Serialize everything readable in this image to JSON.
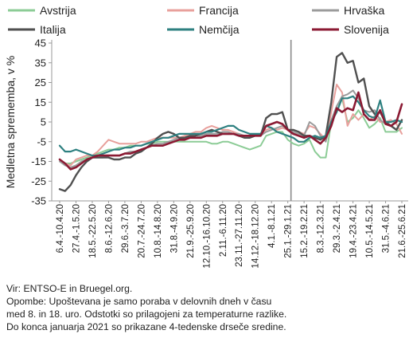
{
  "chart_data": {
    "type": "line",
    "ylabel": "Medletna sprememba, v %",
    "ylim": [
      -35,
      45
    ],
    "yticks": [
      -35,
      -25,
      -15,
      -5,
      5,
      15,
      25,
      35,
      45
    ],
    "legend_position": "top",
    "grid": false,
    "x": [
      "6.4.-10.4.20",
      "13.4.-17.4.20",
      "20.4.-24.4.20",
      "27.4.-1.5.20",
      "4.5.-8.5.20",
      "11.5.-15.5.20",
      "18.5.-22.5.20",
      "25.5.-29.5.20",
      "1.6.-5.6.20",
      "8.6.-12.6.20",
      "15.6.-19.6.20",
      "22.6.-26.6.20",
      "29.6.-3.7.20",
      "6.7.-10.7.20",
      "13.7.-17.7.20",
      "20.7.-24.7.20",
      "27.7.-31.7.20",
      "3.8.-7.8.20",
      "10.8.-14.8.20",
      "17.8.-21.8.20",
      "24.8.-28.8.20",
      "31.8.-4.9.20",
      "7.9.-11.9.20",
      "14.9.-18.9.20",
      "21.9.-25.9.20",
      "28.9.-2.10.20",
      "5.10.-9.10.20",
      "12.10.-16.10.20",
      "19.10.-23.10.20",
      "26.10.-30.10.20",
      "2.11.-6.11.20",
      "9.11.-13.11.20",
      "16.11.-20.11.20",
      "23.11.-27.11.20",
      "30.11.-4.12.20",
      "7.12.-11.12.20",
      "14.12.-18.12.20",
      "21.12.-25.12.20",
      "28.12.-1.1.21",
      "4.1.-8.1.21",
      "11.1.-15.1.21",
      "18.1.-22.1.21",
      "25.1.-29.1.21",
      "1.2.-5.2.21",
      "8.2.-12.2.21",
      "15.2.-19.2.21",
      "22.2.-26.2.21",
      "1.3.-5.3.21",
      "8.3.-12.3.21",
      "15.3.-19.3.21",
      "22.3.-26.3.21",
      "29.3.-2.4.21",
      "5.4.-9.4.21",
      "12.4.-16.4.21",
      "19.4.-23.4.21",
      "26.4.-30.4.21",
      "3.5.-7.5.21",
      "10.5.-14.5.21",
      "17.5.-21.5.21",
      "24.5.-28.5.21",
      "31.5.-4.6.21",
      "7.6.-11.6.21",
      "14.6.-18.6.21",
      "21.6.-25.6.21"
    ],
    "xtick_labels": [
      "6.4.-10.4.20",
      "27.4.-1.5.20",
      "18.5.-22.5.20",
      "8.6.-12.6.20",
      "29.6.-3.7.20",
      "20.7.-24.7.20",
      "10.8.-14.8.20",
      "31.8.-4.9.20",
      "21.9.-25.9.20",
      "12.10.-16.10.20",
      "2.11.-6.11.20",
      "23.11.-27.11.20",
      "14.12.-18.12.20",
      "4.1.-8.1.21",
      "25.1.-29.1.21",
      "15.2.-19.2.21",
      "8.3.-12.3.21",
      "29.3.-2.4.21",
      "19.4.-23.4.21",
      "10.5.-14.5.21",
      "31.5.-4.6.21",
      "21.6.-25.6.21"
    ],
    "divider_after": "25.1.-29.1.21",
    "series": [
      {
        "name": "Avstrija",
        "color": "#8ccc96",
        "width": 2,
        "values": [
          -14,
          -16,
          -16,
          -15,
          -14,
          -13,
          -12,
          -11,
          -10,
          -9,
          -9,
          -8,
          -8,
          -7,
          -7,
          -7,
          -6,
          -6,
          -5,
          -5,
          -5,
          -5,
          -5,
          -5,
          -5,
          -5,
          -5,
          -5,
          -6,
          -6,
          -5,
          -5,
          -6,
          -7,
          -8,
          -9,
          -8,
          -7,
          -2,
          -1,
          0,
          0,
          -4,
          -6,
          -7,
          -6,
          -4,
          -10,
          -13,
          -13,
          5,
          13,
          17,
          5,
          7,
          11,
          7,
          2,
          4,
          7,
          0,
          0,
          0,
          2
        ]
      },
      {
        "name": "Francija",
        "color": "#e8a09c",
        "width": 2,
        "values": [
          -15,
          -16,
          -17,
          -14,
          -13,
          -12,
          -12,
          -10,
          -7,
          -4,
          -5,
          -6,
          -6,
          -6,
          -6,
          -5,
          -5,
          -4,
          -3,
          -3,
          -3,
          -3,
          -3,
          -2,
          -1,
          0,
          0,
          2,
          3,
          2,
          1,
          1,
          0,
          -1,
          -2,
          -2,
          -2,
          -1,
          1,
          2,
          1,
          2,
          1,
          1,
          0,
          -1,
          3,
          2,
          -1,
          -4,
          10,
          24,
          20,
          3,
          9,
          6,
          9,
          6,
          8,
          5,
          5,
          6,
          4,
          -1
        ]
      },
      {
        "name": "Hrvaška",
        "color": "#9b9b9b",
        "width": 2,
        "values": [
          -15,
          -17,
          -18,
          -17,
          -15,
          -14,
          -13,
          -13,
          -13,
          -12,
          -12,
          -12,
          -11,
          -10,
          -10,
          -9,
          -8,
          -7,
          -6,
          -6,
          -5,
          -4,
          -3,
          -3,
          -3,
          -3,
          -2,
          -1,
          -1,
          -1,
          0,
          0,
          -1,
          -1,
          -2,
          -2,
          -2,
          -2,
          0,
          1,
          2,
          3,
          1,
          0,
          -1,
          -2,
          5,
          3,
          -2,
          -5,
          6,
          13,
          18,
          19,
          21,
          17,
          11,
          10,
          11,
          6,
          4,
          3,
          6,
          5
        ]
      },
      {
        "name": "Italija",
        "color": "#505050",
        "width": 2.4,
        "values": [
          -29,
          -30,
          -27,
          -22,
          -18,
          -15,
          -13,
          -13,
          -13,
          -13,
          -14,
          -14,
          -13,
          -13,
          -11,
          -10,
          -8,
          -6,
          -3,
          -1,
          0,
          -1,
          -3,
          -3,
          -2,
          -2,
          -1,
          0,
          1,
          0,
          -1,
          -1,
          -1,
          -2,
          -3,
          -3,
          -2,
          -2,
          7,
          9,
          9,
          10,
          1,
          1,
          0,
          -2,
          -2,
          -3,
          -4,
          -2,
          15,
          38,
          40,
          35,
          36,
          25,
          27,
          13,
          9,
          10,
          5,
          3,
          1,
          6
        ]
      },
      {
        "name": "Nemčija",
        "color": "#2e8080",
        "width": 2.2,
        "values": [
          -7,
          -10,
          -10,
          -9,
          -10,
          -11,
          -12,
          -12,
          -11,
          -10,
          -9,
          -9,
          -8,
          -8,
          -7,
          -7,
          -6,
          -5,
          -4,
          -3,
          -3,
          -2,
          -1,
          -1,
          -1,
          -1,
          -1,
          0,
          0,
          1,
          2,
          3,
          3,
          1,
          0,
          -1,
          -1,
          -1,
          3,
          2,
          0,
          -1,
          -2,
          -3,
          -5,
          -5,
          -3,
          -2,
          -3,
          -2,
          5,
          10,
          17,
          17,
          18,
          15,
          11,
          8,
          7,
          16,
          5,
          5,
          6,
          5
        ]
      },
      {
        "name": "Slovenija",
        "color": "#8b1a33",
        "width": 2.6,
        "values": [
          -14,
          -16,
          -19,
          -18,
          -16,
          -14,
          -13,
          -12,
          -12,
          -12,
          -12,
          -12,
          -11,
          -11,
          -10,
          -9,
          -8,
          -7,
          -7,
          -7,
          -6,
          -5,
          -4,
          -4,
          -3,
          -3,
          -3,
          -2,
          -2,
          -2,
          -1,
          -1,
          -1,
          -2,
          -2,
          -2,
          -2,
          -2,
          3,
          4,
          5,
          4,
          1,
          -1,
          -2,
          -3,
          -2,
          -4,
          -6,
          -3,
          3,
          12,
          10,
          12,
          11,
          20,
          9,
          6,
          6,
          11,
          4,
          3,
          5,
          14
        ]
      }
    ]
  },
  "notes": {
    "source": "Vir: ENTSO-E in Bruegel.org.",
    "note1": "Opombe: Upoštevana je samo poraba v delovnih dneh v času",
    "note2": "med 8. in 18. uro. Odstotki so prilagojeni za temperaturne razlike.",
    "note3": "Do konca januarja 2021 so prikazane 4-tedenske drseče sredine."
  }
}
